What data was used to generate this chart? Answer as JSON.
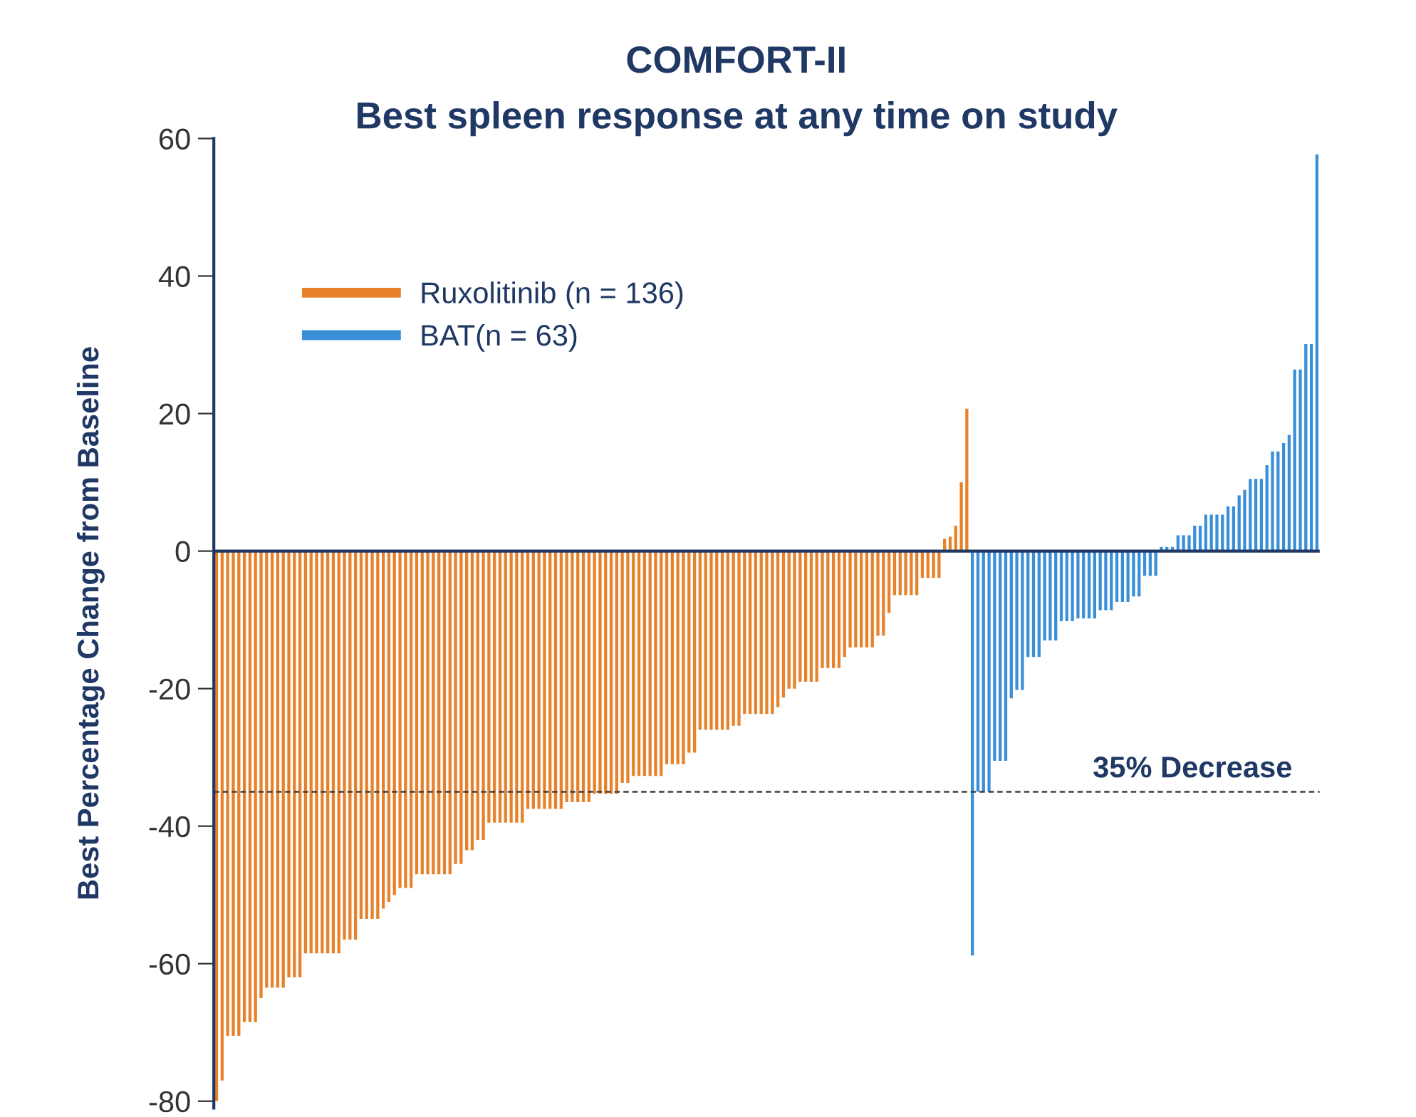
{
  "chart_data": {
    "type": "bar",
    "title": "COMFORT-II",
    "subtitle": "Best spleen response at any time on study",
    "ylabel": "Best Percentage Change from Baseline",
    "categories": [
      null,
      null,
      null,
      null,
      null,
      null,
      null,
      null,
      null,
      null,
      null,
      null,
      null,
      null,
      null,
      null,
      null,
      null,
      null,
      null,
      null,
      null,
      null,
      null,
      null,
      null,
      null,
      null,
      null,
      null,
      null,
      null,
      null,
      null,
      null,
      null,
      null,
      null,
      null,
      null,
      null,
      null,
      null,
      null,
      null,
      null,
      null,
      null,
      null,
      null,
      null,
      null,
      null,
      null,
      null,
      null,
      null,
      null,
      null,
      null,
      null,
      null,
      null,
      null,
      null,
      null,
      null,
      null,
      null,
      null,
      null,
      null,
      null,
      null,
      null,
      null,
      null,
      null,
      null,
      null,
      null,
      null,
      null,
      null,
      null,
      null,
      null,
      null,
      null,
      null,
      null,
      null,
      null,
      null,
      null,
      null,
      null,
      null,
      null,
      null,
      null,
      null,
      null,
      null,
      null,
      null,
      null,
      null,
      null,
      null,
      null,
      null,
      null,
      null,
      null,
      null,
      null,
      null,
      null,
      null,
      null,
      null,
      null,
      null,
      null,
      null,
      null,
      null,
      null,
      null,
      null,
      null,
      null,
      null,
      null,
      null,
      null,
      null,
      null,
      null,
      null,
      null,
      null,
      null,
      null,
      null,
      null,
      null,
      null,
      null,
      null,
      null,
      null,
      null,
      null,
      null,
      null,
      null,
      null,
      null,
      null,
      null,
      null,
      null,
      null,
      null,
      null,
      null,
      null,
      null,
      null,
      null,
      null,
      null,
      null,
      null,
      null,
      null,
      null,
      null,
      null,
      null,
      null,
      null,
      null,
      null,
      null,
      null,
      null,
      null,
      null,
      null,
      null,
      null,
      null,
      null,
      null,
      null,
      null
    ],
    "series": [
      {
        "name": "Ruxolitinib (n = 136)",
        "color": "#e8822a",
        "values": [
          -80,
          -77,
          -70.5,
          -70.5,
          -70.5,
          -68.5,
          -68.5,
          -68.5,
          -65,
          -63.5,
          -63.5,
          -63.5,
          -63.5,
          -62,
          -62,
          -62,
          -58.5,
          -58.5,
          -58.5,
          -58.5,
          -58.5,
          -58.5,
          -58.5,
          -56.5,
          -56.5,
          -56.5,
          -53.5,
          -53.5,
          -53.5,
          -53.5,
          -52,
          -51,
          -50,
          -49,
          -49,
          -49,
          -47,
          -47,
          -47,
          -47,
          -47,
          -47,
          -47,
          -45.5,
          -45.5,
          -43.5,
          -43.5,
          -42,
          -42,
          -39.5,
          -39.5,
          -39.5,
          -39.5,
          -39.5,
          -39.5,
          -39.5,
          -37.5,
          -37.5,
          -37.5,
          -37.5,
          -37.5,
          -37.5,
          -37.5,
          -36.5,
          -36.5,
          -36.5,
          -36.5,
          -36.5,
          -35.3,
          -35.3,
          -35.3,
          -35.3,
          -35.3,
          -33.7,
          -33.7,
          -32.7,
          -32.7,
          -32.7,
          -32.7,
          -32.7,
          -32.7,
          -31,
          -31,
          -31,
          -31,
          -29.3,
          -29.3,
          -26,
          -26,
          -26,
          -26,
          -26,
          -26,
          -25.4,
          -25.4,
          -23.7,
          -23.7,
          -23.7,
          -23.7,
          -23.7,
          -23.7,
          -22.7,
          -21.3,
          -20,
          -20,
          -19,
          -19,
          -19,
          -19,
          -17,
          -17,
          -17,
          -17,
          -15.4,
          -14,
          -14,
          -14,
          -14,
          -14,
          -12.3,
          -12.3,
          -9,
          -6.4,
          -6.4,
          -6.4,
          -6.4,
          -6.4,
          -3.9,
          -3.9,
          -3.9,
          -3.9,
          1.8,
          2.1,
          3.7,
          10,
          20.7,
          null,
          null,
          null,
          null,
          null,
          null,
          null,
          null,
          null,
          null,
          null,
          null,
          null,
          null,
          null,
          null,
          null,
          null,
          null,
          null,
          null,
          null,
          null,
          null,
          null,
          null,
          null,
          null,
          null,
          null,
          null,
          null,
          null,
          null,
          null,
          null,
          null,
          null,
          null,
          null,
          null,
          null,
          null,
          null,
          null,
          null,
          null,
          null,
          null,
          null,
          null,
          null,
          null,
          null,
          null,
          null,
          null,
          null,
          null,
          null,
          null,
          null,
          null
        ]
      },
      {
        "name": "BAT(n = 63)",
        "color": "#3a8fd9",
        "values": [
          null,
          null,
          null,
          null,
          null,
          null,
          null,
          null,
          null,
          null,
          null,
          null,
          null,
          null,
          null,
          null,
          null,
          null,
          null,
          null,
          null,
          null,
          null,
          null,
          null,
          null,
          null,
          null,
          null,
          null,
          null,
          null,
          null,
          null,
          null,
          null,
          null,
          null,
          null,
          null,
          null,
          null,
          null,
          null,
          null,
          null,
          null,
          null,
          null,
          null,
          null,
          null,
          null,
          null,
          null,
          null,
          null,
          null,
          null,
          null,
          null,
          null,
          null,
          null,
          null,
          null,
          null,
          null,
          null,
          null,
          null,
          null,
          null,
          null,
          null,
          null,
          null,
          null,
          null,
          null,
          null,
          null,
          null,
          null,
          null,
          null,
          null,
          null,
          null,
          null,
          null,
          null,
          null,
          null,
          null,
          null,
          null,
          null,
          null,
          null,
          null,
          null,
          null,
          null,
          null,
          null,
          null,
          null,
          null,
          null,
          null,
          null,
          null,
          null,
          null,
          null,
          null,
          null,
          null,
          null,
          null,
          null,
          null,
          null,
          null,
          null,
          null,
          null,
          null,
          null,
          null,
          null,
          null,
          null,
          null,
          null,
          -58.8,
          -35,
          -35,
          -35,
          -30.5,
          -30.5,
          -30.5,
          -21.4,
          -20.2,
          -20.2,
          -15.4,
          -15.4,
          -15.4,
          -13,
          -13,
          -13,
          -10.2,
          -10.2,
          -10.2,
          -9.8,
          -9.8,
          -9.8,
          -9.8,
          -8.6,
          -8.6,
          -8.6,
          -7.4,
          -7.4,
          -7.4,
          -6.6,
          -6.6,
          -3.6,
          -3.6,
          -3.6,
          0.6,
          0.6,
          0.6,
          2.3,
          2.3,
          2.3,
          3.7,
          3.7,
          5.3,
          5.3,
          5.3,
          5.3,
          6.5,
          6.5,
          8.1,
          8.9,
          10.5,
          10.5,
          10.5,
          12.5,
          14.5,
          14.5,
          15.7,
          16.9,
          26.4,
          26.4,
          30.1,
          30.1,
          57.7
        ]
      }
    ],
    "ylim": [
      -81,
      60
    ],
    "yticks": [
      60,
      40,
      20,
      0,
      -20,
      -40,
      -60,
      -80
    ],
    "ref_lines": [
      {
        "axis": "y",
        "value": 0,
        "color": "#1f3864",
        "line_style": "solid"
      },
      {
        "axis": "y",
        "value": -35,
        "label": "35% Decrease",
        "color": "#404040",
        "line_style": "dashed"
      }
    ],
    "grid": false,
    "legend": "top left",
    "tick_labels": "y"
  }
}
